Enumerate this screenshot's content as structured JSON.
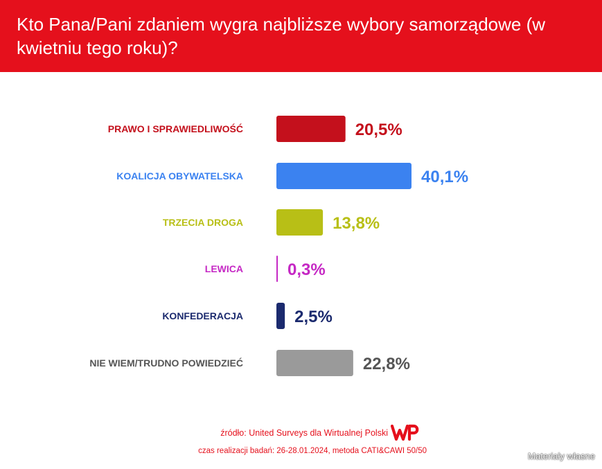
{
  "chart_data": {
    "type": "bar",
    "orientation": "horizontal",
    "title": "Kto Pana/Pani zdaniem wygra najbliższe wybory samorządowe (w kwietniu tego roku)?",
    "categories": [
      "PRAWO I SPRAWIEDLIWOŚĆ",
      "KOALICJA OBYWATELSKA",
      "TRZECIA DROGA",
      "LEWICA",
      "KONFEDERACJA",
      "NIE WIEM/TRUDNO POWIEDZIEĆ"
    ],
    "values": [
      20.5,
      40.1,
      13.8,
      0.3,
      2.5,
      22.8
    ],
    "value_labels": [
      "20,5%",
      "40,1%",
      "13,8%",
      "0,3%",
      "2,5%",
      "22,8%"
    ],
    "colors": [
      "#c4101c",
      "#3b82f0",
      "#b8bf16",
      "#c528c4",
      "#1b2a6e",
      "#9a9a9a"
    ],
    "grid": false,
    "legend": "none"
  },
  "footer": {
    "source": "źródło: United Surveys dla Wirtualnej Polski",
    "period": "czas realizacji badań: 26-28.01.2024, metoda CATI&CAWI 50/50"
  },
  "logo_text": "WP",
  "watermark": "Materiały własne",
  "colors": {
    "header": "#e5101c",
    "footer_text": "#e5101c"
  }
}
